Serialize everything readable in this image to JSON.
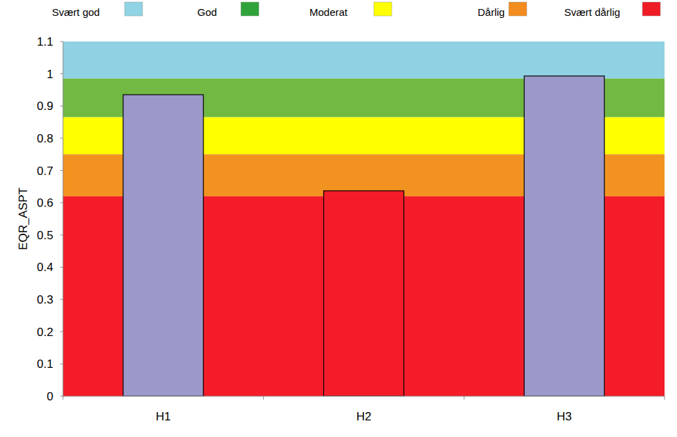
{
  "chart_data": {
    "type": "bar",
    "y_label": "EQR_ASPT",
    "categories": [
      "H1",
      "H2",
      "H3"
    ],
    "values": [
      0.935,
      0.637,
      0.993
    ],
    "colors": [
      "#9c98c9",
      "#f51c2a",
      "#9c98c9"
    ],
    "ylim": [
      0,
      1.1
    ],
    "yticks": [
      0,
      0.1,
      0.2,
      0.3,
      0.4,
      0.5,
      0.6,
      0.7,
      0.8,
      0.9,
      1,
      1.1
    ],
    "bands": [
      {
        "name": "Svært god",
        "color": "#8fd3e4",
        "fill": "#90d2e3",
        "from": 0.985,
        "to": 1.1
      },
      {
        "name": "God",
        "color": "#2fa33a",
        "fill": "#72b944",
        "from": 0.865,
        "to": 0.985
      },
      {
        "name": "Moderat",
        "color": "#ffff00",
        "fill": "#ffff00",
        "from": 0.75,
        "to": 0.865
      },
      {
        "name": "Dårlig",
        "color": "#f28c1e",
        "fill": "#f29220",
        "from": 0.62,
        "to": 0.75
      },
      {
        "name": "Svært dårlig",
        "color": "#ee1c25",
        "fill": "#f51c2a",
        "from": 0,
        "to": 0.62
      }
    ]
  }
}
